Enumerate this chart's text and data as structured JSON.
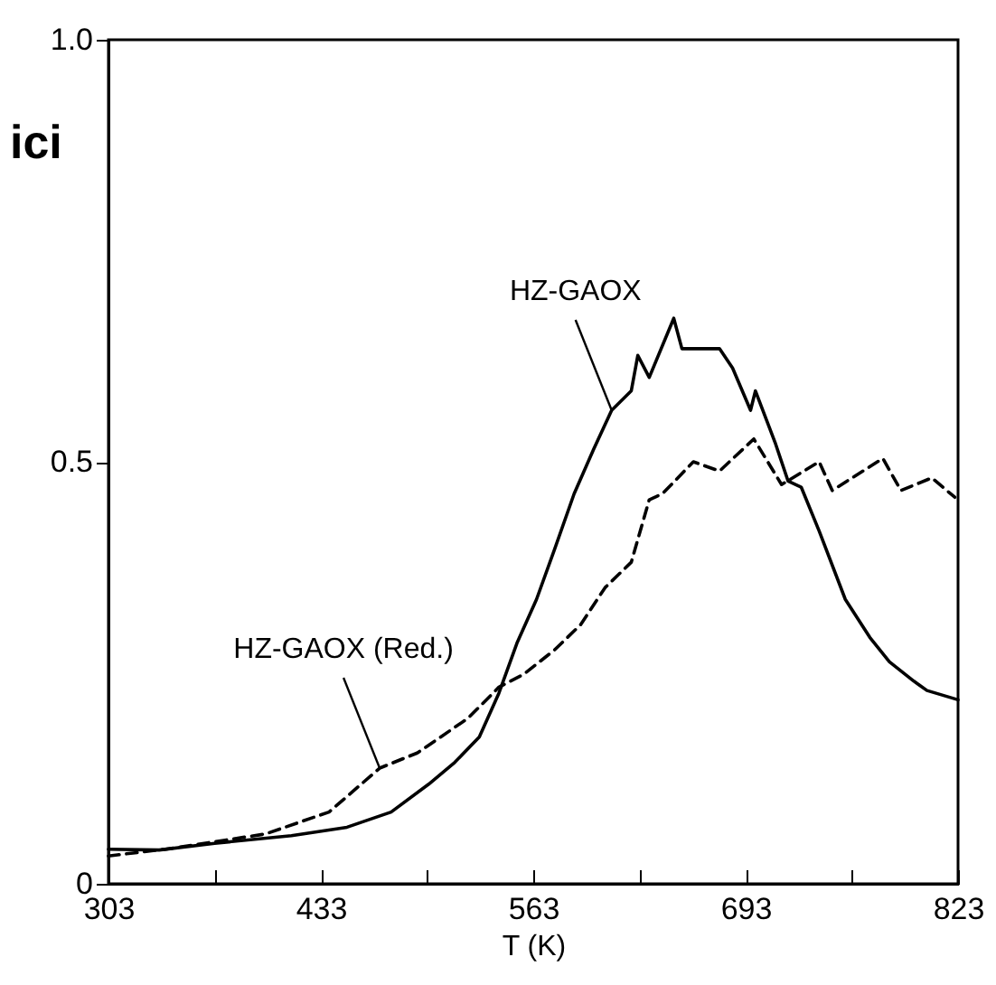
{
  "chart_data": {
    "type": "line",
    "xlabel": "T (K)",
    "ylabel": "ici",
    "xlim": [
      303,
      823
    ],
    "ylim": [
      0,
      1
    ],
    "xticks": [
      303,
      {
        "value": 368,
        "label": null
      },
      433,
      {
        "value": 498,
        "label": null
      },
      563,
      {
        "value": 628,
        "label": null
      },
      693,
      {
        "value": 758,
        "label": null
      },
      823
    ],
    "yticks": [
      0,
      0.5,
      {
        "value": 1,
        "label": "1.0"
      }
    ],
    "grid": false,
    "series": [
      {
        "color": "#000000",
        "line_style": "solid",
        "x": [
          303,
          334,
          368,
          415,
          449,
          476,
          499,
          515,
          530,
          542,
          553,
          565,
          576,
          588,
          600,
          611,
          623,
          627,
          634,
          649,
          654,
          677,
          685,
          696,
          699,
          711,
          719,
          727,
          738,
          754,
          769,
          781,
          796,
          804,
          823
        ],
        "values": [
          0.041,
          0.04,
          0.048,
          0.057,
          0.067,
          0.085,
          0.118,
          0.144,
          0.174,
          0.226,
          0.285,
          0.337,
          0.396,
          0.462,
          0.515,
          0.561,
          0.584,
          0.626,
          0.6,
          0.67,
          0.634,
          0.634,
          0.611,
          0.561,
          0.584,
          0.523,
          0.477,
          0.47,
          0.418,
          0.337,
          0.292,
          0.263,
          0.24,
          0.229,
          0.218
        ]
      },
      {
        "color": "#000000",
        "line_style": "dashed",
        "x": [
          303,
          338,
          399,
          438,
          469,
          492,
          523,
          542,
          557,
          576,
          592,
          607,
          623,
          634,
          642,
          661,
          677,
          698,
          715,
          738,
          746,
          777,
          788,
          807,
          821
        ],
        "values": [
          0.033,
          0.041,
          0.059,
          0.085,
          0.137,
          0.155,
          0.196,
          0.233,
          0.248,
          0.277,
          0.307,
          0.351,
          0.381,
          0.455,
          0.462,
          0.5,
          0.489,
          0.527,
          0.473,
          0.5,
          0.466,
          0.504,
          0.466,
          0.481,
          0.458
        ]
      }
    ],
    "annotations": [
      {
        "text": "HZ-GAOX",
        "x": 611,
        "y": 0.561
      },
      {
        "text": "HZ-GAOX (Red.)",
        "x": 469,
        "y": 0.137
      }
    ]
  }
}
